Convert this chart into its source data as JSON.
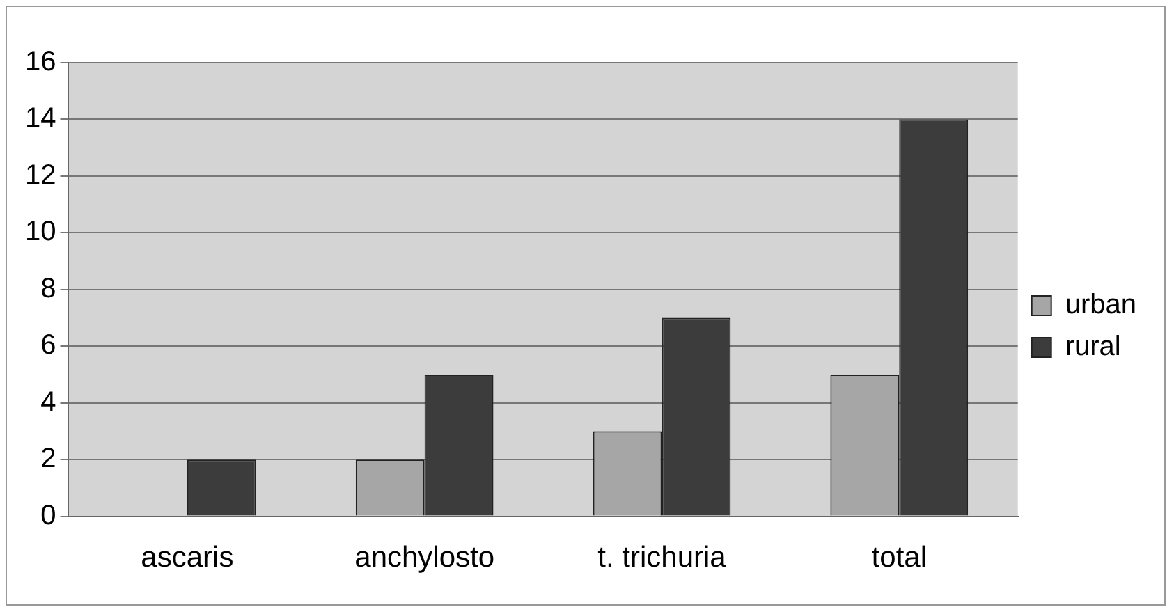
{
  "chart_data": {
    "type": "bar",
    "categories": [
      "ascaris",
      "anchylosto",
      "t. trichuria",
      "total"
    ],
    "series": [
      {
        "name": "urban",
        "color": "#a6a6a6",
        "values": [
          0,
          2,
          3,
          5
        ]
      },
      {
        "name": "rural",
        "color": "#3c3c3c",
        "values": [
          2,
          5,
          7,
          14
        ]
      }
    ],
    "ylim": [
      0,
      16
    ],
    "yticks": [
      0,
      2,
      4,
      6,
      8,
      10,
      12,
      14,
      16
    ],
    "grid": "y",
    "legend": "right"
  }
}
